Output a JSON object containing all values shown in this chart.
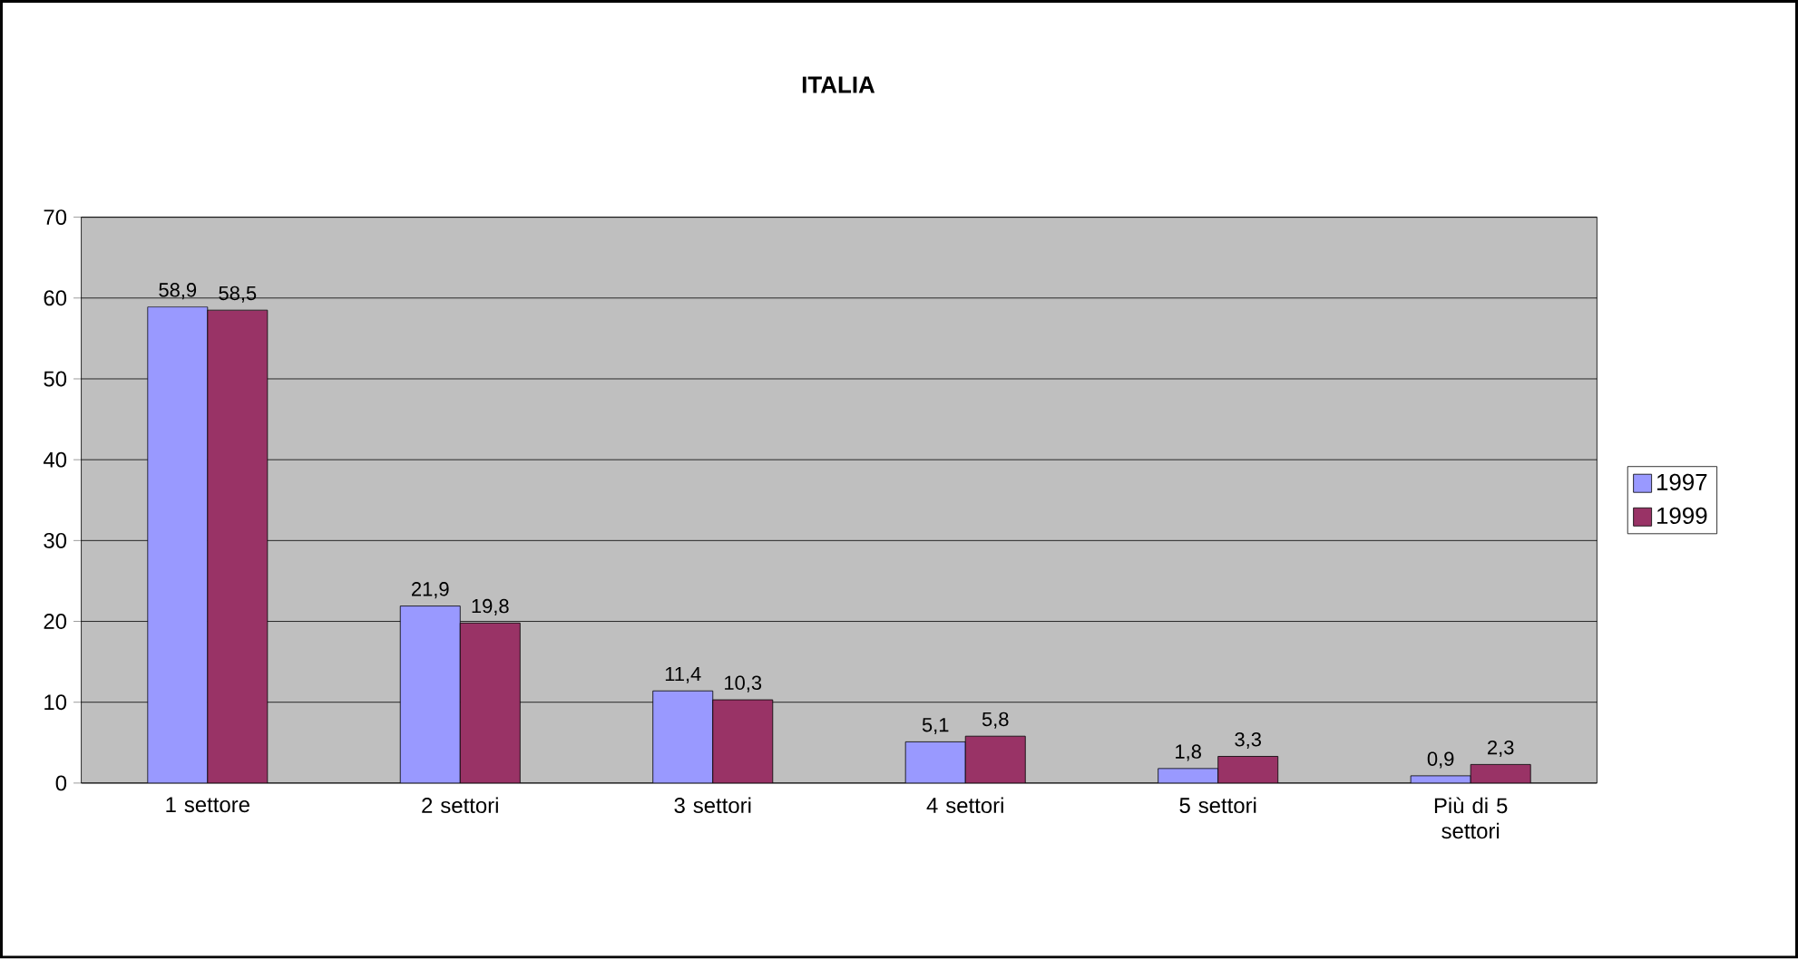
{
  "chart_data": {
    "type": "bar",
    "title": "ITALIA",
    "categories": [
      "1 settore",
      "2 settori",
      "3 settori",
      "4 settori",
      "5 settori",
      "Più di 5 settori"
    ],
    "series": [
      {
        "name": "1997",
        "color": "#9999ff",
        "values": [
          58.9,
          21.9,
          11.4,
          5.1,
          1.8,
          0.9
        ],
        "value_labels": [
          "58,9",
          "21,9",
          "11,4",
          "5,1",
          "1,8",
          "0,9"
        ]
      },
      {
        "name": "1999",
        "color": "#993366",
        "values": [
          58.5,
          19.8,
          10.3,
          5.8,
          3.3,
          2.3
        ],
        "value_labels": [
          "58,5",
          "19,8",
          "10,3",
          "5,8",
          "3,3",
          "2,3"
        ]
      }
    ],
    "ylim": [
      0,
      70
    ],
    "yticks": [
      0,
      10,
      20,
      30,
      40,
      50,
      60,
      70
    ],
    "grid": "y",
    "legend": "right"
  }
}
